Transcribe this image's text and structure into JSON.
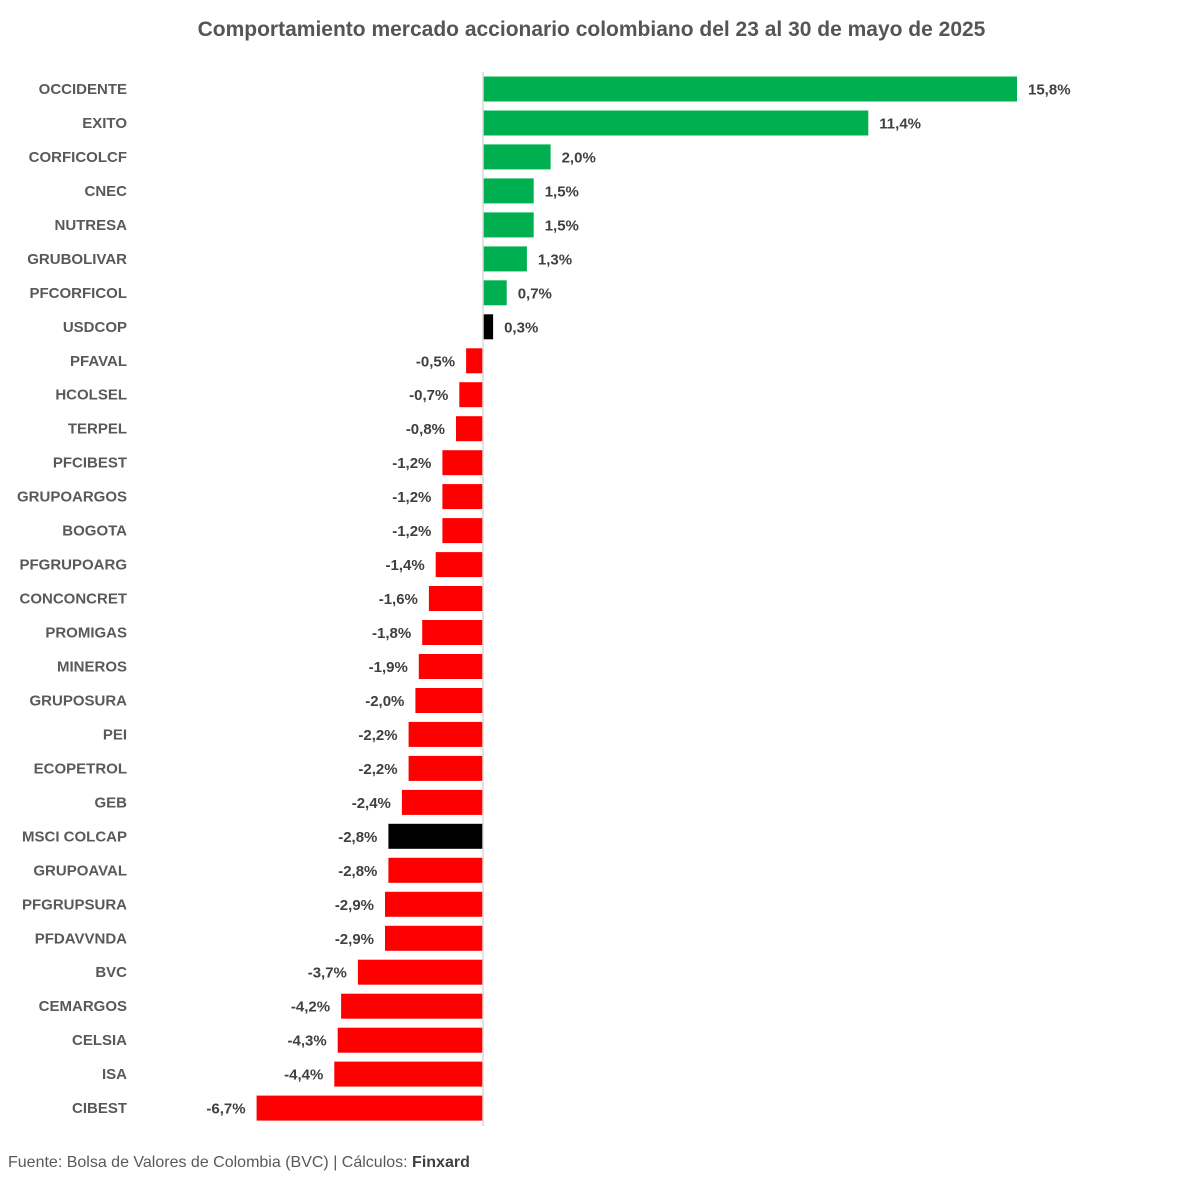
{
  "chart_data": {
    "type": "bar",
    "orientation": "horizontal",
    "title": "Comportamiento mercado accionario colombiano  del 23 al 30 de mayo de 2025",
    "xlabel": "",
    "ylabel": "",
    "xlim": [
      -6.7,
      15.8
    ],
    "grid": false,
    "legend": "none",
    "categories": [
      "OCCIDENTE",
      "EXITO",
      "CORFICOLCF",
      "CNEC",
      "NUTRESA",
      "GRUBOLIVAR",
      "PFCORFICOL",
      "USDCOP",
      "PFAVAL",
      "HCOLSEL",
      "TERPEL",
      "PFCIBEST",
      "GRUPOARGOS",
      "BOGOTA",
      "PFGRUPOARG",
      "CONCONCRET",
      "PROMIGAS",
      "MINEROS",
      "GRUPOSURA",
      "PEI",
      "ECOPETROL",
      "GEB",
      "MSCI COLCAP",
      "GRUPOAVAL",
      "PFGRUPSURA",
      "PFDAVVNDA",
      "BVC",
      "CEMARGOS",
      "CELSIA",
      "ISA",
      "CIBEST"
    ],
    "values": [
      15.8,
      11.4,
      2.0,
      1.5,
      1.5,
      1.3,
      0.7,
      0.3,
      -0.5,
      -0.7,
      -0.8,
      -1.2,
      -1.2,
      -1.2,
      -1.4,
      -1.6,
      -1.8,
      -1.9,
      -2.0,
      -2.2,
      -2.2,
      -2.4,
      -2.8,
      -2.8,
      -2.9,
      -2.9,
      -3.7,
      -4.2,
      -4.3,
      -4.4,
      -6.7
    ],
    "labels": [
      "15,8%",
      "11,4%",
      "2,0%",
      "1,5%",
      "1,5%",
      "1,3%",
      "0,7%",
      "0,3%",
      "-0,5%",
      "-0,7%",
      "-0,8%",
      "-1,2%",
      "-1,2%",
      "-1,2%",
      "-1,4%",
      "-1,6%",
      "-1,8%",
      "-1,9%",
      "-2,0%",
      "-2,2%",
      "-2,2%",
      "-2,4%",
      "-2,8%",
      "-2,8%",
      "-2,9%",
      "-2,9%",
      "-3,7%",
      "-4,2%",
      "-4,3%",
      "-4,4%",
      "-6,7%"
    ],
    "highlight_categories": [
      "USDCOP",
      "MSCI COLCAP"
    ]
  },
  "colors": {
    "positive": "#00B050",
    "negative": "#FF0000",
    "highlight": "#000000",
    "axis": "#D9D9D9"
  },
  "footer": {
    "source_prefix": "Fuente: Bolsa de Valores de Colombia (BVC)  | Cálculos: ",
    "source_brand": "Finxard"
  }
}
